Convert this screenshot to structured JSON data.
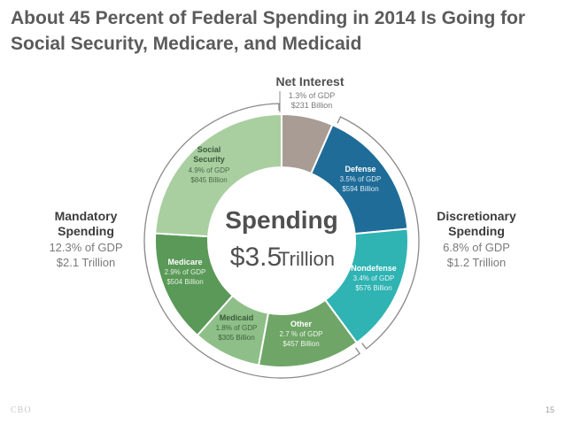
{
  "title_line1": "About 45 Percent of Federal Spending in 2014 Is Going for",
  "title_line2": "Social Security, Medicare, and Medicaid",
  "footer_source": "CBO",
  "page_number": "15",
  "colors": {
    "social_security": "#a9cfa0",
    "medicare": "#5a9957",
    "medicaid": "#8ebf88",
    "other": "#6fa667",
    "nondefense": "#2fb3b3",
    "defense": "#1f6c98",
    "net_interest": "#a89c95",
    "group_label": "#3c3c3c",
    "group_detail": "#7a7a7a",
    "bracket": "#8a8a8a"
  },
  "chart_data": {
    "type": "pie",
    "title": "About 45 Percent of Federal Spending in 2014 Is Going for Social Security, Medicare, and Medicaid",
    "center_label": "Spending",
    "center_value": "$3.5",
    "center_unit": "Trillion",
    "slices": [
      {
        "key": "net_interest",
        "name": "Net Interest",
        "gdp": "1.3% of GDP",
        "amount": "$231 Billion",
        "value": 231
      },
      {
        "key": "defense",
        "name": "Defense",
        "gdp": "3.5% of GDP",
        "amount": "$594 Billion",
        "value": 594
      },
      {
        "key": "nondefense",
        "name": "Nondefense",
        "gdp": "3.4% of GDP",
        "amount": "$576 Billion",
        "value": 576
      },
      {
        "key": "other",
        "name": "Other",
        "gdp": "2.7 % of GDP",
        "amount": "$457 Billion",
        "value": 457
      },
      {
        "key": "medicaid",
        "name": "Medicaid",
        "gdp": "1.8% of GDP",
        "amount": "$305 Billion",
        "value": 305
      },
      {
        "key": "medicare",
        "name": "Medicare",
        "gdp": "2.9% of GDP",
        "amount": "$504 Billion",
        "value": 504
      },
      {
        "key": "social_security",
        "name_line1": "Social",
        "name_line2": "Security",
        "gdp": "4.9% of GDP",
        "amount": "$845 Billion",
        "value": 845
      }
    ],
    "groups": {
      "mandatory": {
        "line1": "Mandatory",
        "line2": "Spending",
        "gdp": "12.3% of GDP",
        "amount": "$2.1 Trillion"
      },
      "discretionary": {
        "line1": "Discretionary",
        "line2": "Spending",
        "gdp": "6.8% of GDP",
        "amount": "$1.2 Trillion"
      }
    }
  }
}
